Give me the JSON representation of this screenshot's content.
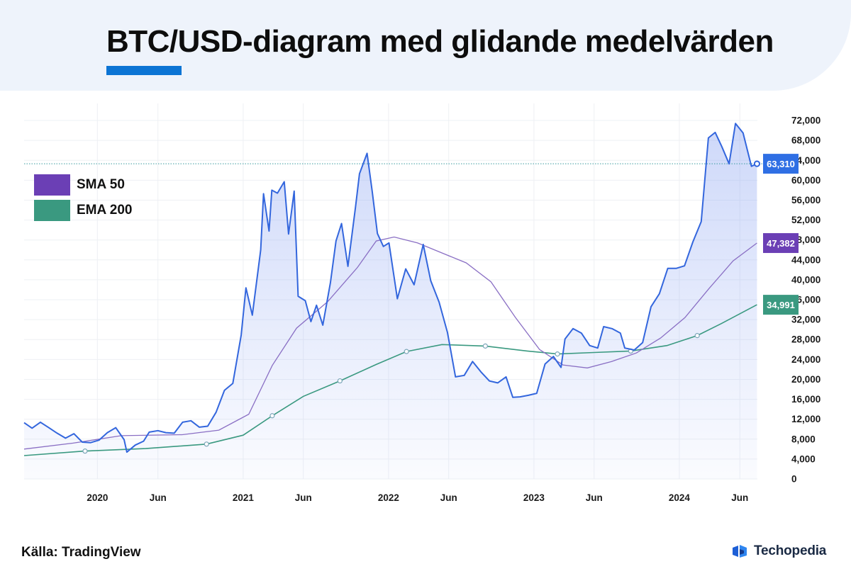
{
  "header": {
    "title": "BTC/USD-diagram med glidande medelvärden"
  },
  "legend": {
    "items": [
      {
        "label": "SMA 50",
        "color": "#6b3fb5"
      },
      {
        "label": "EMA 200",
        "color": "#3a9980"
      }
    ]
  },
  "footer": {
    "source": "Källa: TradingView",
    "brand": "Techopedia"
  },
  "chart_data": {
    "type": "line",
    "title": "BTC/USD-diagram med glidande medelvärden",
    "xlabel": "",
    "ylabel": "",
    "xlim": [
      "2019-07-01",
      "2024-07-15"
    ],
    "ylim": [
      0,
      74000
    ],
    "grid": true,
    "legend_position": "left",
    "x_ticks": [
      {
        "date": "2020-01-01",
        "label": "2020"
      },
      {
        "date": "2020-06-01",
        "label": "Jun"
      },
      {
        "date": "2021-01-01",
        "label": "2021"
      },
      {
        "date": "2021-06-01",
        "label": "Jun"
      },
      {
        "date": "2022-01-01",
        "label": "2022"
      },
      {
        "date": "2022-06-01",
        "label": "Jun"
      },
      {
        "date": "2023-01-01",
        "label": "2023"
      },
      {
        "date": "2023-06-01",
        "label": "Jun"
      },
      {
        "date": "2024-01-01",
        "label": "2024"
      },
      {
        "date": "2024-06-01",
        "label": "Jun"
      }
    ],
    "y_ticks": [
      0,
      4000,
      8000,
      12000,
      16000,
      20000,
      24000,
      28000,
      32000,
      36000,
      40000,
      44000,
      48000,
      52000,
      56000,
      60000,
      64000,
      68000,
      72000
    ],
    "y_tick_labels": [
      "0",
      "4,000",
      "8,000",
      "12,000",
      "16,000",
      "20,000",
      "24,000",
      "28,000",
      "32,000",
      "36,000",
      "40,000",
      "44,000",
      "48,000",
      "52,000",
      "56,000",
      "60,000",
      "64,000",
      "68,000",
      "72,000"
    ],
    "series": [
      {
        "name": "",
        "color": "#3366dd",
        "last_value": 63310,
        "last_label": "63,310",
        "x": [
          "2019-07-01",
          "2019-07-21",
          "2019-08-11",
          "2019-09-01",
          "2019-09-22",
          "2019-10-13",
          "2019-11-03",
          "2019-11-24",
          "2019-12-15",
          "2020-01-05",
          "2020-01-26",
          "2020-02-16",
          "2020-03-08",
          "2020-03-15",
          "2020-04-05",
          "2020-04-26",
          "2020-05-10",
          "2020-06-01",
          "2020-06-21",
          "2020-07-12",
          "2020-08-02",
          "2020-08-23",
          "2020-09-13",
          "2020-10-04",
          "2020-10-25",
          "2020-11-15",
          "2020-12-06",
          "2020-12-27",
          "2021-01-08",
          "2021-01-24",
          "2021-02-14",
          "2021-02-21",
          "2021-03-07",
          "2021-03-14",
          "2021-03-28",
          "2021-04-14",
          "2021-04-25",
          "2021-05-09",
          "2021-05-19",
          "2021-06-06",
          "2021-06-20",
          "2021-07-04",
          "2021-07-20",
          "2021-08-08",
          "2021-08-22",
          "2021-09-05",
          "2021-09-21",
          "2021-10-10",
          "2021-10-20",
          "2021-11-08",
          "2021-11-21",
          "2021-12-04",
          "2021-12-19",
          "2022-01-02",
          "2022-01-23",
          "2022-02-13",
          "2022-03-06",
          "2022-03-29",
          "2022-04-17",
          "2022-05-08",
          "2022-05-29",
          "2022-06-18",
          "2022-07-10",
          "2022-07-31",
          "2022-08-21",
          "2022-09-11",
          "2022-10-02",
          "2022-10-23",
          "2022-11-09",
          "2022-11-27",
          "2022-12-18",
          "2023-01-08",
          "2023-01-29",
          "2023-02-19",
          "2023-03-10",
          "2023-03-20",
          "2023-04-09",
          "2023-04-30",
          "2023-05-21",
          "2023-06-10",
          "2023-06-25",
          "2023-07-16",
          "2023-08-06",
          "2023-08-17",
          "2023-09-10",
          "2023-10-01",
          "2023-10-22",
          "2023-11-12",
          "2023-12-03",
          "2023-12-24",
          "2024-01-14",
          "2024-02-04",
          "2024-02-25",
          "2024-03-14",
          "2024-03-31",
          "2024-04-17",
          "2024-05-05",
          "2024-05-21",
          "2024-06-09",
          "2024-06-30",
          "2024-07-14"
        ],
        "values": [
          11300,
          10200,
          11400,
          10300,
          9200,
          8200,
          9100,
          7400,
          7300,
          7800,
          9300,
          10300,
          7900,
          5400,
          6800,
          7600,
          9400,
          9700,
          9300,
          9200,
          11400,
          11700,
          10400,
          10600,
          13400,
          17800,
          19200,
          28900,
          38400,
          32900,
          46000,
          57300,
          49800,
          58000,
          57400,
          59700,
          49200,
          57800,
          36700,
          35800,
          31600,
          34900,
          30900,
          39400,
          47800,
          51300,
          42700,
          54600,
          61300,
          65400,
          57700,
          49300,
          46700,
          47400,
          36200,
          42200,
          39000,
          47100,
          39800,
          35500,
          29400,
          20500,
          20800,
          23600,
          21500,
          19700,
          19300,
          20500,
          16400,
          16500,
          16800,
          17200,
          23100,
          24600,
          22400,
          28100,
          30200,
          29300,
          26800,
          26300,
          30600,
          30200,
          29300,
          26300,
          25900,
          27400,
          34600,
          37200,
          42300,
          42300,
          42800,
          47600,
          51700,
          68500,
          69600,
          66700,
          63300,
          71400,
          69500,
          62800,
          63310
        ]
      },
      {
        "name": "SMA 50",
        "color": "#6b3fb5",
        "last_value": 47382,
        "last_label": "47,382",
        "x": [
          "2019-07-01",
          "2019-11-01",
          "2020-03-01",
          "2020-08-01",
          "2020-11-01",
          "2021-01-15",
          "2021-03-15",
          "2021-05-15",
          "2021-08-01",
          "2021-10-15",
          "2021-12-01",
          "2022-01-15",
          "2022-03-15",
          "2022-05-15",
          "2022-07-15",
          "2022-09-15",
          "2022-11-15",
          "2023-01-15",
          "2023-03-15",
          "2023-05-15",
          "2023-07-15",
          "2023-09-15",
          "2023-11-15",
          "2024-01-15",
          "2024-03-15",
          "2024-05-15",
          "2024-07-14"
        ],
        "values": [
          6000,
          7200,
          8700,
          8900,
          9800,
          13000,
          22800,
          30300,
          35600,
          42500,
          47800,
          48600,
          47400,
          45400,
          43400,
          39600,
          32500,
          26000,
          22900,
          22300,
          23600,
          25300,
          28300,
          32400,
          38200,
          43800,
          47382
        ]
      },
      {
        "name": "EMA 200",
        "color": "#3a9980",
        "last_value": 34991,
        "last_label": "34,991",
        "x": [
          "2019-07-01",
          "2019-12-01",
          "2020-05-01",
          "2020-10-01",
          "2021-01-01",
          "2021-03-15",
          "2021-06-01",
          "2021-09-01",
          "2021-12-01",
          "2022-02-15",
          "2022-05-15",
          "2022-09-01",
          "2022-12-15",
          "2023-03-01",
          "2023-06-01",
          "2023-09-01",
          "2023-12-01",
          "2024-02-15",
          "2024-04-15",
          "2024-07-14"
        ],
        "values": [
          4700,
          5600,
          6100,
          7000,
          8800,
          12700,
          16600,
          19700,
          23000,
          25600,
          27000,
          26700,
          25700,
          25100,
          25400,
          25700,
          26800,
          28800,
          31200,
          34991
        ]
      }
    ]
  }
}
